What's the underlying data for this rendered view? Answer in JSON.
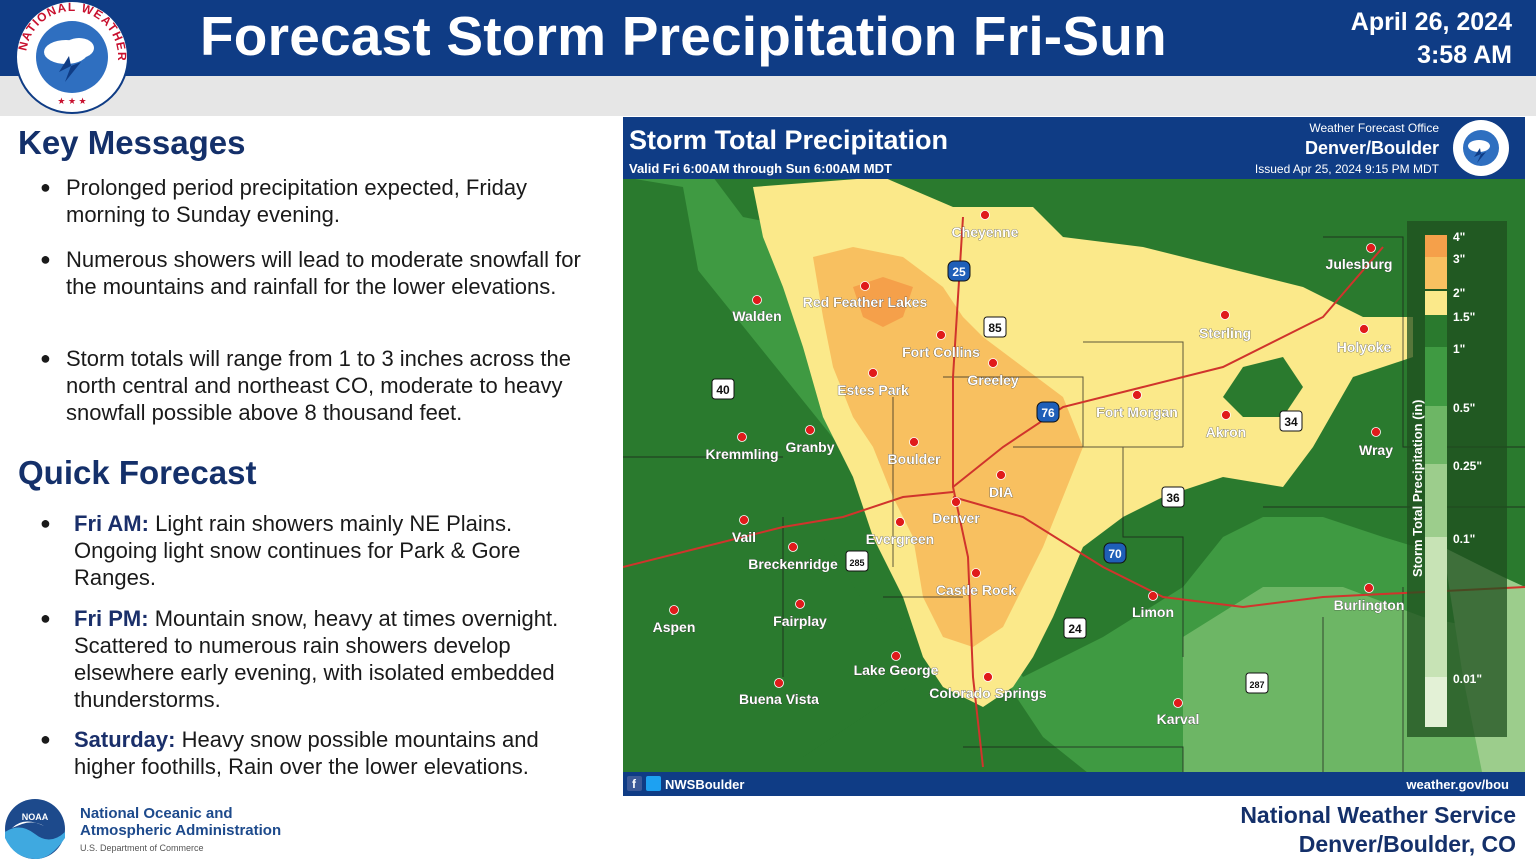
{
  "header": {
    "logo_text": "NATIONAL WEATHER SERVICE",
    "title": "Forecast Storm Precipitation Fri-Sun",
    "date": "April 26, 2024",
    "time": "3:58 AM"
  },
  "key_messages": {
    "heading": "Key Messages",
    "items": [
      "Prolonged period precipitation expected, Friday morning to Sunday evening.",
      "Numerous showers will lead to moderate snowfall for the mountains and rainfall for the lower elevations.",
      "Storm totals will range from 1 to 3 inches across the north central and northeast CO, moderate to heavy snowfall possible above 8 thousand feet."
    ]
  },
  "quick_forecast": {
    "heading": "Quick Forecast",
    "items": [
      {
        "label": "Fri AM:",
        "text": "Light rain showers mainly NE Plains. Ongoing light snow continues for Park & Gore Ranges."
      },
      {
        "label": "Fri PM:",
        "text": "Mountain snow, heavy at times overnight. Scattered to numerous rain showers develop elsewhere early evening, with isolated embedded thunderstorms."
      },
      {
        "label": "Saturday:",
        "text": "Heavy snow possible mountains and higher foothills, Rain over the lower elevations."
      }
    ]
  },
  "map": {
    "title": "Storm Total Precipitation",
    "valid": "Valid Fri 6:00AM through Sun 6:00AM MDT",
    "office_label": "Weather Forecast Office",
    "office": "Denver/Boulder",
    "issued": "Issued Apr 25, 2024 9:15 PM MDT",
    "social": "NWSBoulder",
    "url": "weather.gov/bou",
    "legend_title": "Storm Total Precipitation (in)",
    "legend": [
      {
        "label": "4\"",
        "color": "#f5a04a"
      },
      {
        "label": "3\"",
        "color": "#f8c060"
      },
      {
        "label": "2\"",
        "color": "#fbe98a"
      },
      {
        "label": "1.5\"",
        "color": "#2a7a2e"
      },
      {
        "label": "1\"",
        "color": "#3f9a42"
      },
      {
        "label": "0.5\"",
        "color": "#6db665"
      },
      {
        "label": "0.25\"",
        "color": "#9ccd8c"
      },
      {
        "label": "0.1\"",
        "color": "#c7e3b5"
      },
      {
        "label": "0.01\"",
        "color": "#e3f1d6"
      }
    ],
    "cities": [
      "Cheyenne",
      "Julesburg",
      "Red Feather Lakes",
      "Walden",
      "Sterling",
      "Holyoke",
      "Fort Collins",
      "Greeley",
      "Estes Park",
      "Fort Morgan",
      "Akron",
      "Kremmling",
      "Granby",
      "Boulder",
      "Wray",
      "DIA",
      "Denver",
      "Vail",
      "Evergreen",
      "Breckenridge",
      "Castle Rock",
      "Limon",
      "Burlington",
      "Aspen",
      "Fairplay",
      "Lake George",
      "Colorado Springs",
      "Buena Vista",
      "Karval"
    ],
    "highways": [
      "25",
      "85",
      "40",
      "76",
      "34",
      "36",
      "285",
      "70",
      "24",
      "287"
    ]
  },
  "footer": {
    "noaa_line1": "National Oceanic and",
    "noaa_line2": "Atmospheric Administration",
    "noaa_sub": "U.S. Department of Commerce",
    "nws_line1": "National Weather Service",
    "nws_line2": "Denver/Boulder, CO"
  }
}
